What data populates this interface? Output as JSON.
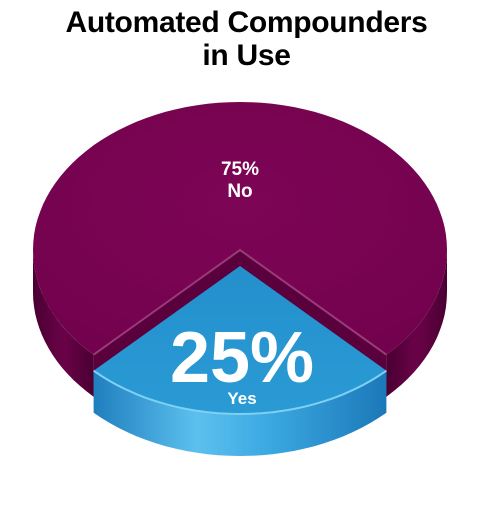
{
  "chart_data": {
    "type": "pie",
    "title_lines": [
      "Automated Compounders",
      "in Use"
    ],
    "title": "Automated Compounders in Use",
    "slices": [
      {
        "label": "No",
        "value": 75,
        "value_label": "75%",
        "color": "#760250"
      },
      {
        "label": "Yes",
        "value": 25,
        "value_label": "25%",
        "color": "#2494d0"
      }
    ],
    "exploded_slice": "Yes",
    "style": "3d"
  }
}
